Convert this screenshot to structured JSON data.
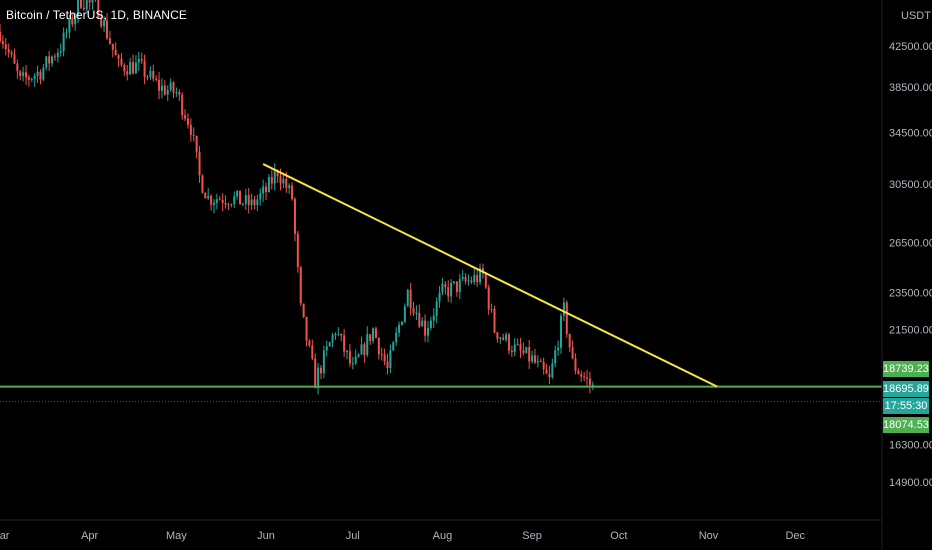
{
  "header": {
    "title": "Bitcoin / TetherUS, 1D, BINANCE"
  },
  "price_axis": {
    "currency": "USDT"
  },
  "badges": {
    "alert_price": "18739.23",
    "last_price": "18695.89",
    "countdown": "17:55:30",
    "low_price": "18074.53"
  },
  "colors": {
    "up": "#26a69a",
    "down": "#ef5350",
    "trendline": "#f5e642",
    "support": "#4caf50",
    "badge_teal": "#26a69a",
    "badge_green": "#4caf50",
    "background": "#000000"
  },
  "chart_data": {
    "type": "candlestick",
    "symbol": "Bitcoin / TetherUS",
    "interval": "1D",
    "exchange": "BINANCE",
    "x_ticks": [
      "Mar",
      "Apr",
      "May",
      "Jun",
      "Jul",
      "Aug",
      "Sep",
      "Oct",
      "Nov",
      "Dec"
    ],
    "y_ticks": [
      42500,
      38500,
      34500,
      30500,
      26500,
      23500,
      21500,
      16300,
      14900
    ],
    "y_scale": "log",
    "ylim": [
      13800,
      49000
    ],
    "date_range": [
      "2022-03-01",
      "2022-12-31"
    ],
    "price_path": [
      [
        "2022-03-01",
        44000
      ],
      [
        "2022-03-08",
        39000
      ],
      [
        "2022-03-15",
        40000
      ],
      [
        "2022-03-22",
        42500
      ],
      [
        "2022-03-29",
        47500
      ],
      [
        "2022-04-04",
        46500
      ],
      [
        "2022-04-11",
        40500
      ],
      [
        "2022-04-18",
        40500
      ],
      [
        "2022-04-25",
        38500
      ],
      [
        "2022-05-01",
        38000
      ],
      [
        "2022-05-06",
        35000
      ],
      [
        "2022-05-09",
        31000
      ],
      [
        "2022-05-12",
        29500
      ],
      [
        "2022-05-20",
        29500
      ],
      [
        "2022-05-27",
        29000
      ],
      [
        "2022-06-01",
        30000
      ],
      [
        "2022-06-05",
        31500
      ],
      [
        "2022-06-10",
        29500
      ],
      [
        "2022-06-13",
        22500
      ],
      [
        "2022-06-18",
        19000
      ],
      [
        "2022-06-25",
        21500
      ],
      [
        "2022-07-01",
        19500
      ],
      [
        "2022-07-08",
        21500
      ],
      [
        "2022-07-13",
        19500
      ],
      [
        "2022-07-20",
        23500
      ],
      [
        "2022-07-26",
        21500
      ],
      [
        "2022-08-01",
        23500
      ],
      [
        "2022-08-08",
        24000
      ],
      [
        "2022-08-15",
        24500
      ],
      [
        "2022-08-19",
        21500
      ],
      [
        "2022-08-26",
        20500
      ],
      [
        "2022-09-01",
        20000
      ],
      [
        "2022-09-07",
        19000
      ],
      [
        "2022-09-12",
        22500
      ],
      [
        "2022-09-15",
        19800
      ],
      [
        "2022-09-20",
        19000
      ],
      [
        "2022-09-22",
        18695
      ]
    ],
    "drawings": [
      {
        "kind": "trendline",
        "from": [
          "2022-05-31",
          32000
        ],
        "to": [
          "2022-11-04",
          18739
        ]
      },
      {
        "kind": "horizontal",
        "price": 18739.23
      }
    ],
    "last_price": 18695.89,
    "low": 18074.53
  }
}
